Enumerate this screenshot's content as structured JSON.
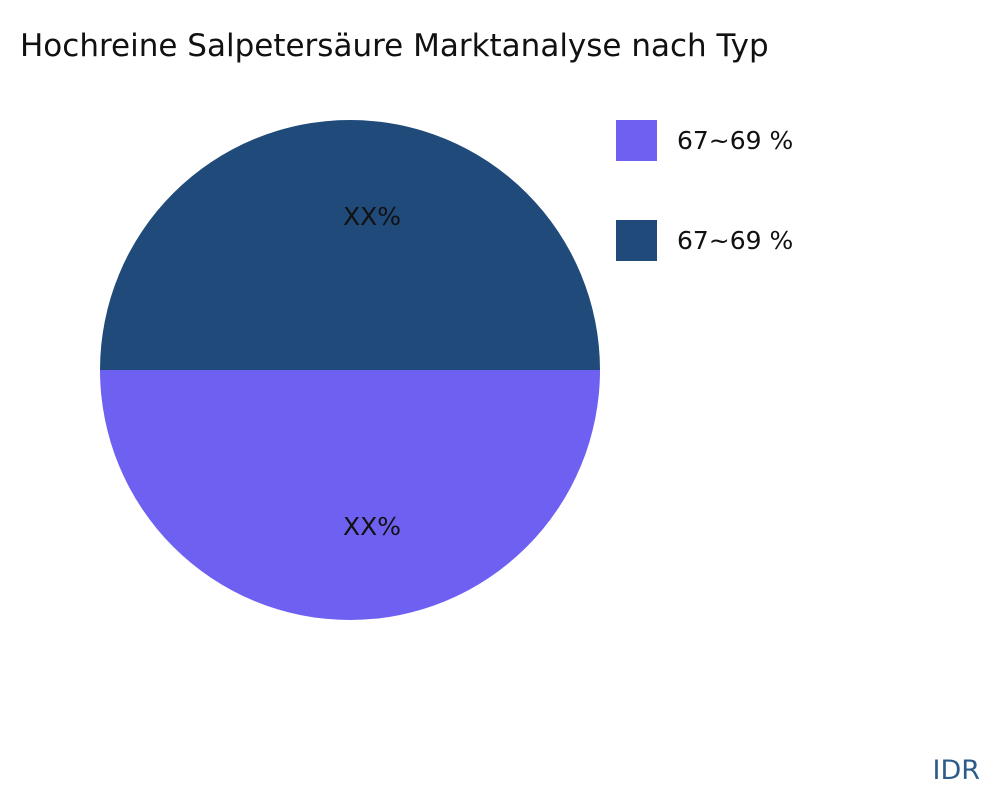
{
  "chart_data": {
    "type": "pie",
    "title": "Hochreine Salpetersäure Marktanalyse nach Typ",
    "slices": [
      {
        "legend": "67~69 %",
        "value": 50,
        "label": "XX%",
        "color": "#6e61f2"
      },
      {
        "legend": "67~69 %",
        "value": 50,
        "label": "XX%",
        "color": "#1f4a7a"
      }
    ],
    "legend_placement": "right"
  },
  "brand": "IDR"
}
